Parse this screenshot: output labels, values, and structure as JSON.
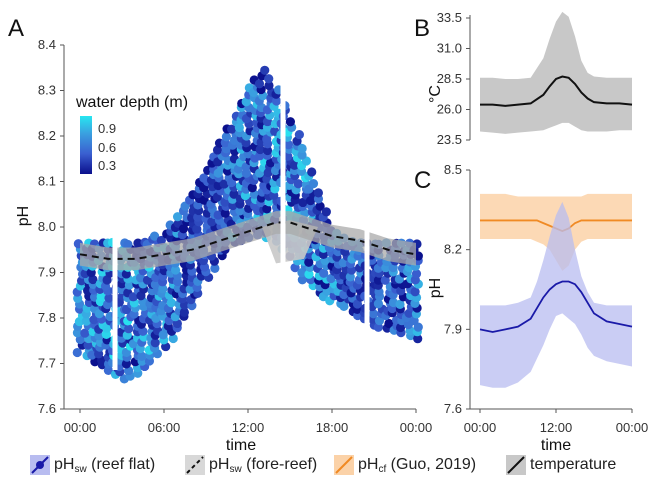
{
  "chart_data": [
    {
      "panel": "A",
      "type": "scatter",
      "xlabel": "time",
      "ylabel": "pH",
      "ylim": [
        7.6,
        8.4
      ],
      "yticks": [
        "7.6",
        "7.7",
        "7.8",
        "7.9",
        "8.0",
        "8.1",
        "8.2",
        "8.3",
        "8.4"
      ],
      "xticks": [
        "00:00",
        "06:00",
        "12:00",
        "18:00",
        "00:00"
      ],
      "colorbar": {
        "title": "water depth (m)",
        "ticks": [
          "0.9",
          "0.6",
          "0.3"
        ],
        "range": [
          0.2,
          1.0
        ],
        "colors": [
          "#0a0f8c",
          "#3a5fd0",
          "#3aa0e0",
          "#27e6f0"
        ]
      },
      "reef_flat": {
        "hours": [
          0,
          1,
          2,
          3,
          4,
          5,
          6,
          7,
          8,
          9,
          10,
          11,
          12,
          13,
          14,
          15,
          16,
          17,
          18,
          19,
          20,
          21,
          22,
          23,
          24
        ],
        "lower": [
          7.72,
          7.7,
          7.68,
          7.66,
          7.67,
          7.7,
          7.73,
          7.77,
          7.82,
          7.88,
          7.93,
          7.96,
          7.97,
          7.98,
          7.96,
          7.93,
          7.88,
          7.85,
          7.83,
          7.82,
          7.8,
          7.78,
          7.77,
          7.76,
          7.75
        ],
        "upper": [
          7.97,
          7.97,
          7.97,
          7.97,
          7.97,
          7.98,
          7.99,
          8.03,
          8.08,
          8.13,
          8.19,
          8.25,
          8.31,
          8.35,
          8.31,
          8.24,
          8.18,
          8.08,
          8.0,
          7.98,
          7.97,
          7.97,
          7.97,
          7.97,
          7.97
        ],
        "gaps_hours": [
          2.5,
          14.5,
          20.5
        ]
      },
      "fore_reef": {
        "hours": [
          0,
          2,
          4,
          6,
          8,
          10,
          12,
          14,
          15,
          16,
          18,
          20,
          22,
          24
        ],
        "mean": [
          7.94,
          7.93,
          7.93,
          7.94,
          7.95,
          7.97,
          7.99,
          8.01,
          8.01,
          8.0,
          7.98,
          7.97,
          7.95,
          7.94
        ],
        "band_width": 0.025
      },
      "temperature_shading": {
        "hours": [
          13,
          14,
          15,
          16,
          17
        ],
        "lower": 7.88,
        "upper": 8.0
      }
    },
    {
      "panel": "B",
      "type": "line",
      "ylabel": "°C",
      "yticks": [
        "23.5",
        "26.0",
        "28.5",
        "31.0",
        "33.5"
      ],
      "ylim": [
        23.5,
        33.5
      ],
      "x": [
        0,
        2,
        4,
        6,
        8,
        10,
        11,
        12,
        13,
        14,
        15,
        16,
        17,
        18,
        20,
        22,
        24
      ],
      "mean": [
        26.4,
        26.4,
        26.3,
        26.4,
        26.5,
        27.2,
        27.9,
        28.5,
        28.7,
        28.6,
        28.1,
        27.4,
        26.9,
        26.6,
        26.5,
        26.5,
        26.4
      ],
      "lower": [
        24.2,
        24.1,
        24.0,
        24.1,
        24.2,
        24.3,
        24.5,
        24.7,
        24.9,
        24.9,
        24.6,
        24.3,
        24.2,
        24.2,
        24.2,
        24.3,
        24.3
      ],
      "upper": [
        28.6,
        28.6,
        28.5,
        28.5,
        28.6,
        30.2,
        31.8,
        33.2,
        34.0,
        33.6,
        32.0,
        30.0,
        29.0,
        28.7,
        28.6,
        28.6,
        28.6
      ]
    },
    {
      "panel": "C",
      "type": "line",
      "ylabel": "pH",
      "yticks": [
        "7.6",
        "7.9",
        "8.2",
        "8.5"
      ],
      "xticks": [
        "00:00",
        "12:00",
        "00:00"
      ],
      "xlabel": "time",
      "ylim": [
        7.6,
        8.5
      ],
      "x": [
        0,
        2,
        4,
        6,
        8,
        9,
        10,
        11,
        12,
        13,
        14,
        15,
        16,
        17,
        18,
        20,
        22,
        24
      ],
      "reef_flat": {
        "mean": [
          7.9,
          7.89,
          7.9,
          7.91,
          7.94,
          7.98,
          8.02,
          8.05,
          8.07,
          8.08,
          8.08,
          8.07,
          8.04,
          8.0,
          7.96,
          7.93,
          7.92,
          7.91
        ],
        "lower": [
          7.69,
          7.68,
          7.68,
          7.7,
          7.74,
          7.79,
          7.84,
          7.9,
          7.95,
          7.96,
          7.94,
          7.92,
          7.88,
          7.83,
          7.8,
          7.78,
          7.77,
          7.76
        ],
        "upper": [
          7.99,
          7.99,
          7.99,
          8.0,
          8.02,
          8.08,
          8.16,
          8.25,
          8.33,
          8.38,
          8.32,
          8.2,
          8.1,
          8.04,
          8.0,
          7.99,
          7.99,
          7.99
        ]
      },
      "cf": {
        "mean": [
          8.31,
          8.31,
          8.31,
          8.31,
          8.31,
          8.31,
          8.3,
          8.29,
          8.28,
          8.27,
          8.28,
          8.3,
          8.31,
          8.31,
          8.31,
          8.31,
          8.31,
          8.31
        ],
        "lower": [
          8.24,
          8.24,
          8.24,
          8.24,
          8.24,
          8.23,
          8.22,
          8.2,
          8.16,
          8.12,
          8.14,
          8.2,
          8.23,
          8.24,
          8.24,
          8.24,
          8.24,
          8.24
        ],
        "upper": [
          8.41,
          8.41,
          8.41,
          8.4,
          8.4,
          8.4,
          8.4,
          8.4,
          8.4,
          8.4,
          8.4,
          8.4,
          8.4,
          8.41,
          8.41,
          8.41,
          8.41,
          8.41
        ]
      }
    }
  ],
  "legend": [
    {
      "name": "pH",
      "sub": "sw",
      "suffix": " (reef flat)",
      "fill": "#b8bcf0",
      "line": "#1a1aa8",
      "marker": true,
      "dashed": false
    },
    {
      "name": "pH",
      "sub": "sw",
      "suffix": " (fore-reef)",
      "fill": "#d8d8d8",
      "line": "#111111",
      "marker": false,
      "dashed": true
    },
    {
      "name": "pH",
      "sub": "cf",
      "suffix": " (Guo, 2019)",
      "fill": "#fbd2a8",
      "line": "#f08a24",
      "marker": false,
      "dashed": false
    },
    {
      "name": "temperature",
      "sub": "",
      "suffix": "",
      "fill": "#c8c8c8",
      "line": "#111111",
      "marker": false,
      "dashed": false
    }
  ],
  "colors": {
    "reef_flat_fill": "#b8bcf0",
    "reef_flat_line": "#1a1aa8",
    "cf_fill": "#fbd2a8",
    "cf_line": "#f08a24",
    "temp_fill": "#c8c8c8",
    "temp_line": "#111111",
    "fore_reef_band": "#a9a9a9"
  },
  "panel_labels": [
    "A",
    "B",
    "C"
  ]
}
